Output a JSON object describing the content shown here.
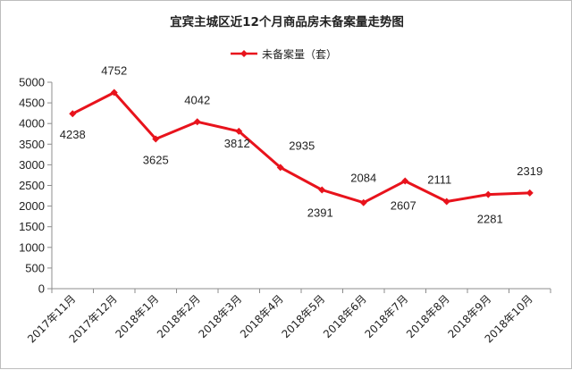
{
  "chart_data": {
    "type": "line",
    "title": "宜宾主城区近12个月商品房未备案量走势图",
    "categories": [
      "2017年11月",
      "2017年12月",
      "2018年1月",
      "2018年2月",
      "2018年3月",
      "2018年4月",
      "2018年5月",
      "2018年6月",
      "2018年7月",
      "2018年8月",
      "2018年9月",
      "2018年10月"
    ],
    "series": [
      {
        "name": "未备案量（套）",
        "color": "#e8131c",
        "values": [
          4238,
          4752,
          3625,
          4042,
          3812,
          2935,
          2391,
          2084,
          2607,
          2111,
          2281,
          2319
        ]
      }
    ],
    "ylim": [
      0,
      5000
    ],
    "yticks": [
      0,
      500,
      1000,
      1500,
      2000,
      2500,
      3000,
      3500,
      4000,
      4500,
      5000
    ],
    "xlabel": "",
    "ylabel": "",
    "grid": false,
    "legend_position": "top-center",
    "axis_color": "#8c8c8c"
  }
}
